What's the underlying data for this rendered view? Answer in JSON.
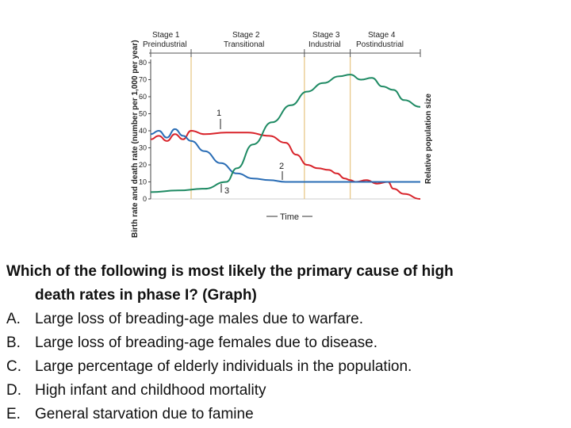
{
  "question": {
    "line1": "Which of the following is most likely the primary cause of high",
    "line2": "death rates in phase I? (Graph)",
    "options": [
      {
        "letter": "A.",
        "text": "Large loss of breading-age males due to warfare."
      },
      {
        "letter": "B.",
        "text": "Large loss of breading-age females due to disease."
      },
      {
        "letter": "C.",
        "text": "Large percentage of elderly individuals in the population."
      },
      {
        "letter": "D.",
        "text": "High infant and childhood mortality"
      },
      {
        "letter": "E.",
        "text": "General starvation due to famine"
      }
    ]
  },
  "chart_data": {
    "type": "line",
    "ylabel": "Birth rate and death rate (number per 1,000 per year)",
    "ylabel_right": "Relative population size",
    "xlabel": "Time",
    "yticks": [
      0,
      10,
      20,
      30,
      40,
      50,
      60,
      70,
      80
    ],
    "ylim": [
      0,
      80
    ],
    "stages": [
      {
        "name": "Stage 1",
        "sub": "Preindustrial"
      },
      {
        "name": "Stage 2",
        "sub": "Transitional"
      },
      {
        "name": "Stage 3",
        "sub": "Industrial"
      },
      {
        "name": "Stage 4",
        "sub": "Postindustrial"
      }
    ],
    "stage_boundaries": [
      0.15,
      0.57,
      0.74
    ],
    "annotations": [
      "1",
      "2",
      "3"
    ],
    "colors": {
      "birth": "#d8232a",
      "death": "#2a6db5",
      "population": "#1e8a63",
      "stage": "#e8c98a"
    },
    "series": [
      {
        "key": "birth",
        "x": [
          0,
          0.03,
          0.06,
          0.09,
          0.12,
          0.15,
          0.2,
          0.28,
          0.36,
          0.44,
          0.5,
          0.54,
          0.58,
          0.62,
          0.66,
          0.69,
          0.72,
          0.74,
          0.76,
          0.8,
          0.84,
          0.88,
          0.9,
          0.94,
          1.0
        ],
        "y": [
          35,
          37,
          34,
          38,
          35,
          40,
          38,
          39,
          39,
          37,
          33,
          26,
          20,
          18,
          17,
          15,
          12,
          11,
          10,
          11,
          9,
          10,
          6,
          3,
          0
        ]
      },
      {
        "key": "death",
        "x": [
          0,
          0.03,
          0.06,
          0.09,
          0.12,
          0.15,
          0.2,
          0.26,
          0.32,
          0.38,
          0.44,
          0.5,
          0.57,
          0.65,
          0.74,
          0.85,
          1.0
        ],
        "y": [
          38,
          40,
          36,
          41,
          37,
          34,
          28,
          21,
          15,
          12,
          11,
          10,
          10,
          10,
          10,
          10,
          10
        ]
      },
      {
        "key": "population",
        "x": [
          0,
          0.1,
          0.2,
          0.28,
          0.32,
          0.38,
          0.45,
          0.52,
          0.58,
          0.64,
          0.7,
          0.74,
          0.78,
          0.82,
          0.86,
          0.9,
          0.94,
          1.0
        ],
        "y": [
          4,
          5,
          6,
          10,
          18,
          32,
          45,
          55,
          63,
          68,
          72,
          73,
          70,
          71,
          66,
          64,
          58,
          54
        ]
      }
    ]
  }
}
